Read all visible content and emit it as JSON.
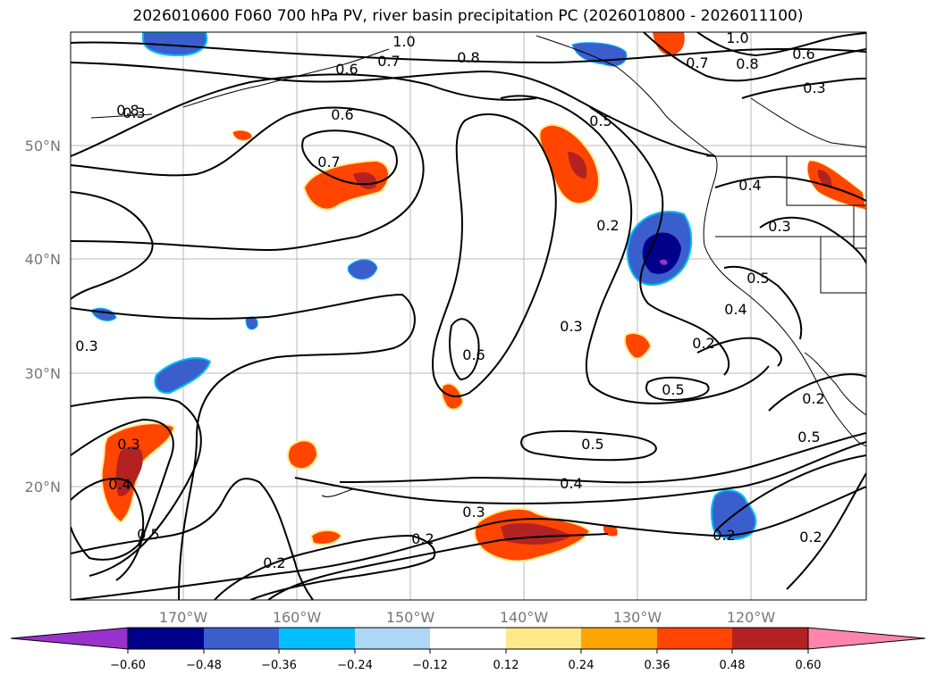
{
  "title": "2026010600 F060 700 hPa PV, river basin precipitation PC (2026010800 - 2026011100)",
  "map": {
    "lat_labels": [
      "50°N",
      "40°N",
      "30°N",
      "20°N"
    ],
    "lon_labels": [
      "170°W",
      "160°W",
      "150°W",
      "140°W",
      "130°W",
      "120°W"
    ],
    "contour_labels": [
      "1.0",
      "0.7",
      "0.8",
      "0.6",
      "0.8",
      "0.6",
      "0.7",
      "0.5",
      "0.2",
      "0.3",
      "0.6",
      "0.3",
      "0.2",
      "0.5",
      "0.5",
      "0.4",
      "0.3",
      "0.2",
      "0.2",
      "0.3",
      "0.4",
      "0.5",
      "0.2",
      "0.2",
      "1.0",
      "0.8",
      "0.6",
      "0.3",
      "0.4",
      "0.3",
      "0.5",
      "0.4",
      "0.2",
      "0.5",
      "0.7",
      "0.3"
    ]
  },
  "colorbar": {
    "colors": [
      "#9932cc",
      "#00008b",
      "#3a5fcd",
      "#00bfff",
      "#add8f5",
      "#ffffff",
      "#ffe98a",
      "#ffa500",
      "#ff4500",
      "#b22222",
      "#ff85aa"
    ],
    "tick_labels": [
      "−0.60",
      "−0.48",
      "−0.36",
      "−0.24",
      "−0.12",
      "0.12",
      "0.24",
      "0.36",
      "0.48",
      "0.60"
    ]
  }
}
